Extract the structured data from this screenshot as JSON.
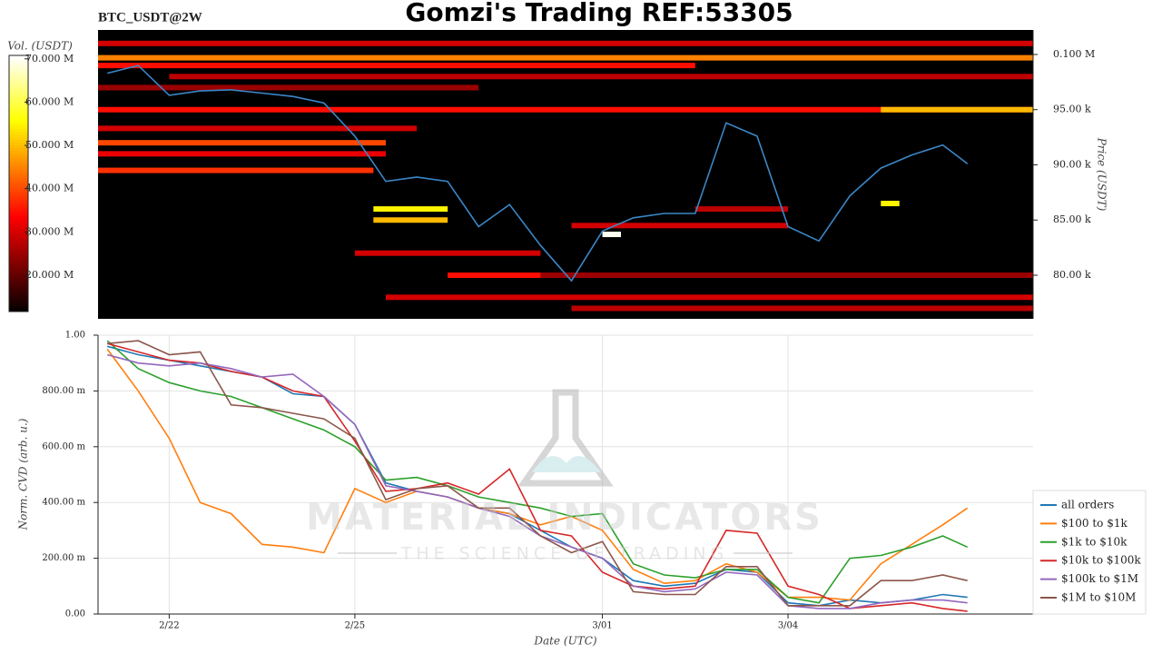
{
  "chart_data": [
    {
      "type": "heatmap",
      "title": "Gomzi's Trading REF:53305",
      "symbol": "BTC_USDT@2W",
      "y_label": "Price (USDT)",
      "colorbar_label": "Vol. (USDT)",
      "xlim": [
        20.85,
        35.96
      ],
      "ylim": [
        76050,
        102220
      ],
      "yticks": [
        {
          "value": 80000,
          "label": "80.00 k"
        },
        {
          "value": 85000,
          "label": "85.00 k"
        },
        {
          "value": 90000,
          "label": "90.00 k"
        },
        {
          "value": 95000,
          "label": "95.00 k"
        },
        {
          "value": 100000,
          "label": "0.100 M"
        }
      ],
      "clim": [
        11600000,
        70800000
      ],
      "cticks": [
        {
          "value": 20000000,
          "label": "20.000 M"
        },
        {
          "value": 30000000,
          "label": "30.000 M"
        },
        {
          "value": 40000000,
          "label": "40.000 M"
        },
        {
          "value": 50000000,
          "label": "50.000 M"
        },
        {
          "value": 60000000,
          "label": "60.000 M"
        },
        {
          "value": 70000000,
          "label": "70.000 M"
        }
      ],
      "heatmap": [
        {
          "price": 101000,
          "x0": 20.85,
          "x1": 35.96,
          "volume": 30000000
        },
        {
          "price": 99700,
          "x0": 20.85,
          "x1": 35.96,
          "volume": 45000000
        },
        {
          "price": 99000,
          "x0": 20.85,
          "x1": 30.5,
          "volume": 35000000
        },
        {
          "price": 98000,
          "x0": 22,
          "x1": 35.96,
          "volume": 28000000
        },
        {
          "price": 97000,
          "x0": 20.85,
          "x1": 27,
          "volume": 25000000
        },
        {
          "price": 95000,
          "x0": 20.85,
          "x1": 35.96,
          "volume": 35000000
        },
        {
          "price": 95000,
          "x0": 33.5,
          "x1": 35.96,
          "volume": 50000000
        },
        {
          "price": 93300,
          "x0": 20.85,
          "x1": 26,
          "volume": 30000000
        },
        {
          "price": 92000,
          "x0": 20.85,
          "x1": 25.5,
          "volume": 40000000
        },
        {
          "price": 91000,
          "x0": 20.85,
          "x1": 25.5,
          "volume": 32000000
        },
        {
          "price": 89500,
          "x0": 20.85,
          "x1": 25.3,
          "volume": 38000000
        },
        {
          "price": 86000,
          "x0": 25.3,
          "x1": 26.5,
          "volume": 55000000
        },
        {
          "price": 85000,
          "x0": 25.3,
          "x1": 26.5,
          "volume": 50000000
        },
        {
          "price": 86000,
          "x0": 30.5,
          "x1": 32,
          "volume": 28000000
        },
        {
          "price": 84500,
          "x0": 28.5,
          "x1": 32,
          "volume": 30000000
        },
        {
          "price": 82000,
          "x0": 25,
          "x1": 28,
          "volume": 30000000
        },
        {
          "price": 80000,
          "x0": 26.5,
          "x1": 28.5,
          "volume": 35000000
        },
        {
          "price": 80000,
          "x0": 28,
          "x1": 35.96,
          "volume": 25000000
        },
        {
          "price": 78000,
          "x0": 25.5,
          "x1": 35.96,
          "volume": 30000000
        },
        {
          "price": 77000,
          "x0": 28.5,
          "x1": 35.96,
          "volume": 28000000
        },
        {
          "price": 86500,
          "x0": 33.5,
          "x1": 33.8,
          "volume": 55000000
        },
        {
          "price": 83700,
          "x0": 29,
          "x1": 29.3,
          "volume": 70000000
        }
      ],
      "x": [
        21,
        21.5,
        22,
        22.5,
        23,
        23.5,
        24,
        24.5,
        25,
        25.5,
        26,
        26.5,
        27,
        27.5,
        28,
        28.5,
        29,
        29.5,
        30,
        30.5,
        31,
        31.5,
        32,
        32.5,
        33,
        33.5,
        34,
        34.5,
        34.9
      ],
      "series": [
        {
          "color": "#3a87c8",
          "values": [
            98300,
            99000,
            96300,
            96700,
            96800,
            96500,
            96200,
            95600,
            92600,
            88500,
            88900,
            88500,
            84400,
            86400,
            82700,
            79500,
            84000,
            85200,
            85600,
            85600,
            93800,
            92600,
            84400,
            83100,
            87200,
            89700,
            90900,
            91800,
            90100
          ]
        }
      ]
    },
    {
      "type": "line",
      "y_label": "Norm. CVD (arb. u.)",
      "x_label": "Date (UTC)",
      "watermark": "MATERIAL INDICATORS",
      "watermark_sub": "THE SCIENCE OF TRADING",
      "xlim": [
        20.85,
        35.96
      ],
      "ylim": [
        0,
        1
      ],
      "xticks": [
        {
          "value": 22,
          "label": "2/22"
        },
        {
          "value": 25,
          "label": "2/25"
        },
        {
          "value": 29,
          "label": "3/01"
        },
        {
          "value": 32,
          "label": "3/04"
        }
      ],
      "yticks": [
        {
          "value": 0,
          "label": "0.00"
        },
        {
          "value": 0.2,
          "label": "200.00 m"
        },
        {
          "value": 0.4,
          "label": "400.00 m"
        },
        {
          "value": 0.6,
          "label": "600.00 m"
        },
        {
          "value": 0.8,
          "label": "800.00 m"
        },
        {
          "value": 1,
          "label": "1.00"
        }
      ],
      "grid": true,
      "x": [
        21,
        21.5,
        22,
        22.5,
        23,
        23.5,
        24,
        24.5,
        25,
        25.5,
        26,
        26.5,
        27,
        27.5,
        28,
        28.5,
        29,
        29.5,
        30,
        30.5,
        31,
        31.5,
        32,
        32.5,
        33,
        33.5,
        34,
        34.5,
        34.9
      ],
      "series": [
        {
          "name": "all orders",
          "color": "#1f77b4",
          "values": [
            0.96,
            0.93,
            0.91,
            0.89,
            0.87,
            0.85,
            0.79,
            0.78,
            0.68,
            0.47,
            0.44,
            0.42,
            0.38,
            0.36,
            0.3,
            0.24,
            0.2,
            0.12,
            0.1,
            0.11,
            0.16,
            0.15,
            0.04,
            0.03,
            0.05,
            0.04,
            0.05,
            0.07,
            0.06
          ]
        },
        {
          "name": "$100 to $1k",
          "color": "#ff7f0e",
          "values": [
            0.95,
            0.8,
            0.63,
            0.4,
            0.36,
            0.25,
            0.24,
            0.22,
            0.45,
            0.4,
            0.44,
            0.42,
            0.38,
            0.36,
            0.32,
            0.35,
            0.3,
            0.16,
            0.11,
            0.12,
            0.18,
            0.15,
            0.06,
            0.06,
            0.05,
            0.18,
            0.25,
            0.32,
            0.38
          ]
        },
        {
          "name": "$1k to $10k",
          "color": "#2ca02c",
          "values": [
            0.98,
            0.88,
            0.83,
            0.8,
            0.78,
            0.74,
            0.7,
            0.66,
            0.6,
            0.48,
            0.49,
            0.46,
            0.42,
            0.4,
            0.38,
            0.35,
            0.36,
            0.18,
            0.14,
            0.13,
            0.16,
            0.16,
            0.06,
            0.04,
            0.2,
            0.21,
            0.24,
            0.28,
            0.24
          ]
        },
        {
          "name": "$10k to $100k",
          "color": "#d62728",
          "values": [
            0.97,
            0.94,
            0.91,
            0.9,
            0.87,
            0.85,
            0.8,
            0.78,
            0.62,
            0.44,
            0.45,
            0.47,
            0.43,
            0.52,
            0.3,
            0.28,
            0.15,
            0.1,
            0.09,
            0.1,
            0.3,
            0.29,
            0.1,
            0.07,
            0.02,
            0.03,
            0.04,
            0.02,
            0.01
          ]
        },
        {
          "name": "$100k to $1M",
          "color": "#9467bd",
          "values": [
            0.93,
            0.9,
            0.89,
            0.9,
            0.88,
            0.85,
            0.86,
            0.78,
            0.68,
            0.46,
            0.44,
            0.42,
            0.38,
            0.35,
            0.28,
            0.24,
            0.2,
            0.1,
            0.08,
            0.09,
            0.15,
            0.14,
            0.03,
            0.02,
            0.02,
            0.04,
            0.05,
            0.05,
            0.04
          ]
        },
        {
          "name": "$1M to $10M",
          "color": "#8c564b",
          "values": [
            0.97,
            0.98,
            0.93,
            0.94,
            0.75,
            0.74,
            0.72,
            0.7,
            0.63,
            0.41,
            0.45,
            0.46,
            0.38,
            0.38,
            0.28,
            0.22,
            0.26,
            0.08,
            0.07,
            0.07,
            0.17,
            0.17,
            0.03,
            0.03,
            0.03,
            0.12,
            0.12,
            0.14,
            0.12
          ]
        }
      ]
    }
  ]
}
